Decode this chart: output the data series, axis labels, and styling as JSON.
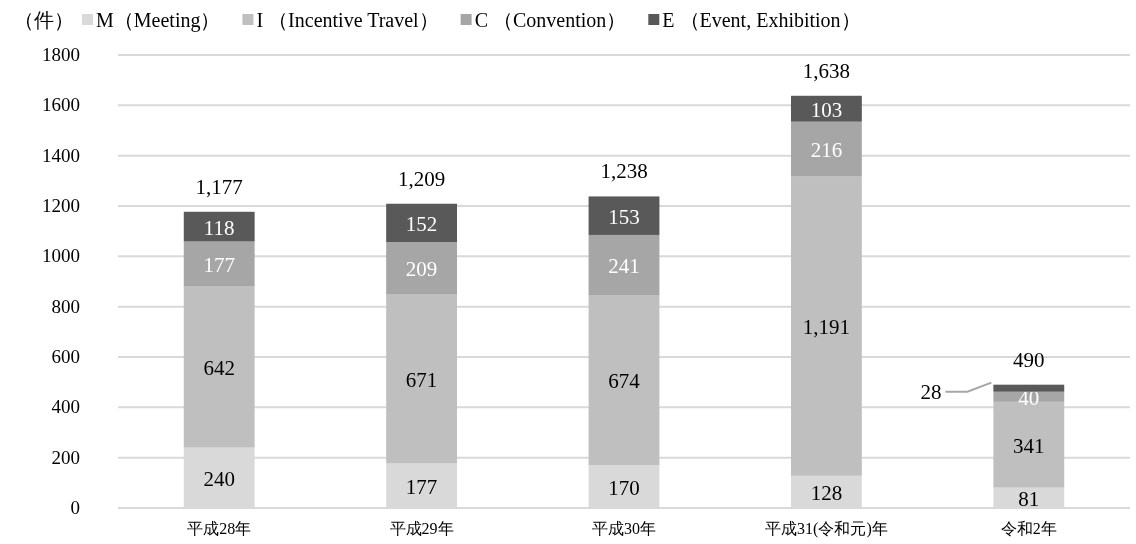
{
  "chart_data": {
    "type": "bar",
    "stacked": true,
    "ylabel": "（件）",
    "categories": [
      "平成28年",
      "平成29年",
      "平成30年",
      "平成31(令和元)年",
      "令和2年"
    ],
    "series": [
      {
        "name": "M（Meeting）",
        "color": "#d9d9d9",
        "values": [
          240,
          177,
          170,
          128,
          81
        ]
      },
      {
        "name": "I （Incentive Travel）",
        "color": "#bfbfbf",
        "values": [
          642,
          671,
          674,
          1191,
          341
        ],
        "value_labels": [
          "642",
          "671",
          "674",
          "1,191",
          "341"
        ]
      },
      {
        "name": "C （Convention）",
        "color": "#a6a6a6",
        "values": [
          177,
          209,
          241,
          216,
          40
        ]
      },
      {
        "name": "E （Event, Exhibition）",
        "color": "#595959",
        "values": [
          118,
          152,
          153,
          103,
          28
        ]
      }
    ],
    "totals": [
      "1,177",
      "1,209",
      "1,238",
      "1,638",
      "490"
    ],
    "data_labels": true,
    "ylim": [
      0,
      1800
    ],
    "yticks": [
      0,
      200,
      400,
      600,
      800,
      1000,
      1200,
      1400,
      1600,
      1800
    ],
    "grid": "y",
    "legend": "top"
  }
}
